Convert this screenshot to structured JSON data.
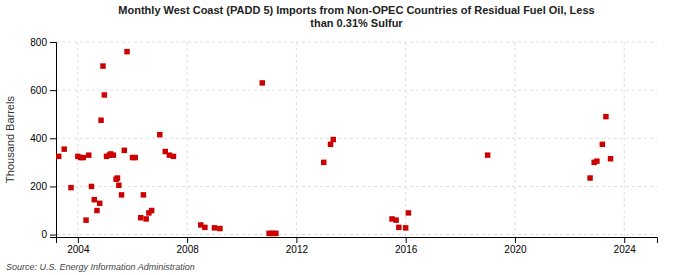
{
  "chart_data": {
    "type": "scatter",
    "title": "Monthly West Coast (PADD 5) Imports from Non-OPEC Countries of Residual Fuel Oil, Less\nthan 0.31% Sulfur",
    "ylabel": "Thousand Barrels",
    "annotations": [
      "Source: U.S. Energy Information Administration"
    ],
    "color": "#cc0000",
    "marker": "square",
    "grid": true,
    "xlim": [
      2003.2,
      2025.2
    ],
    "ylim": [
      -10,
      800
    ],
    "xticks": [
      2004,
      2008,
      2012,
      2016,
      2020,
      2024
    ],
    "yticks": [
      0,
      200,
      400,
      600,
      800
    ],
    "x": [
      2003.3,
      2003.5,
      2003.75,
      2004.0,
      2004.1,
      2004.2,
      2004.3,
      2004.4,
      2004.5,
      2004.6,
      2004.7,
      2004.8,
      2004.85,
      2004.92,
      2004.97,
      2005.05,
      2005.15,
      2005.2,
      2005.3,
      2005.4,
      2005.45,
      2005.5,
      2005.6,
      2005.7,
      2005.8,
      2006.0,
      2006.1,
      2006.3,
      2006.4,
      2006.5,
      2006.6,
      2006.7,
      2007.0,
      2007.2,
      2007.35,
      2007.5,
      2008.5,
      2008.65,
      2009.0,
      2009.2,
      2010.75,
      2011.0,
      2011.08,
      2011.17,
      2011.25,
      2013.0,
      2013.25,
      2013.35,
      2015.5,
      2015.65,
      2015.75,
      2016.0,
      2016.1,
      2019.0,
      2022.75,
      2022.9,
      2023.0,
      2023.2,
      2023.33,
      2023.5
    ],
    "values": [
      325,
      355,
      195,
      325,
      320,
      320,
      60,
      330,
      200,
      145,
      100,
      130,
      475,
      700,
      580,
      325,
      330,
      335,
      330,
      230,
      235,
      205,
      165,
      350,
      760,
      320,
      320,
      70,
      165,
      65,
      90,
      100,
      415,
      345,
      330,
      325,
      40,
      30,
      28,
      25,
      630,
      5,
      5,
      5,
      5,
      300,
      375,
      395,
      65,
      60,
      30,
      28,
      90,
      330,
      235,
      300,
      305,
      375,
      490,
      315
    ]
  }
}
